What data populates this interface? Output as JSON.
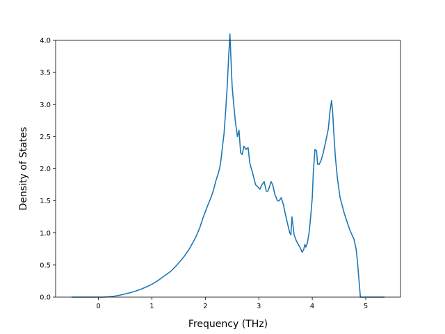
{
  "chart_data": {
    "type": "line",
    "xlabel": "Frequency (THz)",
    "ylabel": "Density of States",
    "xlim": [
      -0.8,
      5.65
    ],
    "ylim": [
      0.0,
      4.0
    ],
    "xticks": [
      0,
      1,
      2,
      3,
      4,
      5
    ],
    "xtick_labels": [
      "0",
      "1",
      "2",
      "3",
      "4",
      "5"
    ],
    "yticks": [
      0.0,
      0.5,
      1.0,
      1.5,
      2.0,
      2.5,
      3.0,
      3.5,
      4.0
    ],
    "ytick_labels": [
      "0.0",
      "0.5",
      "1.0",
      "1.5",
      "2.0",
      "2.5",
      "3.0",
      "3.5",
      "4.0"
    ],
    "grid": false,
    "legend": false,
    "line_color": "#1f77b4",
    "series": [
      {
        "x": [
          -0.5,
          -0.3,
          -0.1,
          0.0,
          0.1,
          0.2,
          0.3,
          0.4,
          0.5,
          0.6,
          0.7,
          0.8,
          0.9,
          1.0,
          1.1,
          1.2,
          1.3,
          1.35,
          1.4,
          1.5,
          1.6,
          1.7,
          1.8,
          1.85,
          1.9,
          1.95,
          2.0,
          2.05,
          2.1,
          2.15,
          2.2,
          2.25,
          2.27,
          2.29,
          2.32,
          2.35,
          2.38,
          2.41,
          2.44,
          2.46,
          2.48,
          2.5,
          2.52,
          2.56,
          2.6,
          2.63,
          2.66,
          2.69,
          2.72,
          2.76,
          2.8,
          2.83,
          2.86,
          2.88,
          2.9,
          2.94,
          2.98,
          3.02,
          3.05,
          3.1,
          3.14,
          3.17,
          3.2,
          3.23,
          3.26,
          3.3,
          3.35,
          3.38,
          3.42,
          3.46,
          3.5,
          3.55,
          3.58,
          3.6,
          3.62,
          3.66,
          3.7,
          3.74,
          3.78,
          3.81,
          3.84,
          3.86,
          3.88,
          3.91,
          3.94,
          3.97,
          4.0,
          4.02,
          4.05,
          4.08,
          4.1,
          4.13,
          4.16,
          4.2,
          4.25,
          4.3,
          4.33,
          4.36,
          4.38,
          4.4,
          4.43,
          4.47,
          4.52,
          4.6,
          4.7,
          4.78,
          4.82,
          4.84,
          4.87,
          4.9,
          5.0,
          5.35
        ],
        "y": [
          0.0,
          0.0,
          0.0,
          0.0,
          0.0,
          0.005,
          0.015,
          0.03,
          0.05,
          0.07,
          0.095,
          0.125,
          0.16,
          0.2,
          0.25,
          0.31,
          0.37,
          0.4,
          0.44,
          0.53,
          0.63,
          0.75,
          0.9,
          0.99,
          1.09,
          1.22,
          1.33,
          1.44,
          1.54,
          1.66,
          1.82,
          1.95,
          2.02,
          2.12,
          2.34,
          2.55,
          2.9,
          3.3,
          3.8,
          4.1,
          3.7,
          3.3,
          3.1,
          2.75,
          2.5,
          2.6,
          2.25,
          2.22,
          2.35,
          2.3,
          2.33,
          2.1,
          2.0,
          1.95,
          1.88,
          1.75,
          1.72,
          1.68,
          1.74,
          1.8,
          1.65,
          1.65,
          1.72,
          1.8,
          1.75,
          1.6,
          1.5,
          1.5,
          1.55,
          1.44,
          1.28,
          1.1,
          1.0,
          0.97,
          1.25,
          0.97,
          0.88,
          0.82,
          0.76,
          0.7,
          0.74,
          0.82,
          0.78,
          0.85,
          1.0,
          1.25,
          1.55,
          1.95,
          2.3,
          2.28,
          2.07,
          2.07,
          2.12,
          2.23,
          2.42,
          2.62,
          2.88,
          3.06,
          2.9,
          2.6,
          2.2,
          1.85,
          1.55,
          1.3,
          1.05,
          0.9,
          0.75,
          0.6,
          0.3,
          0.0,
          0.0,
          0.0
        ]
      }
    ]
  }
}
